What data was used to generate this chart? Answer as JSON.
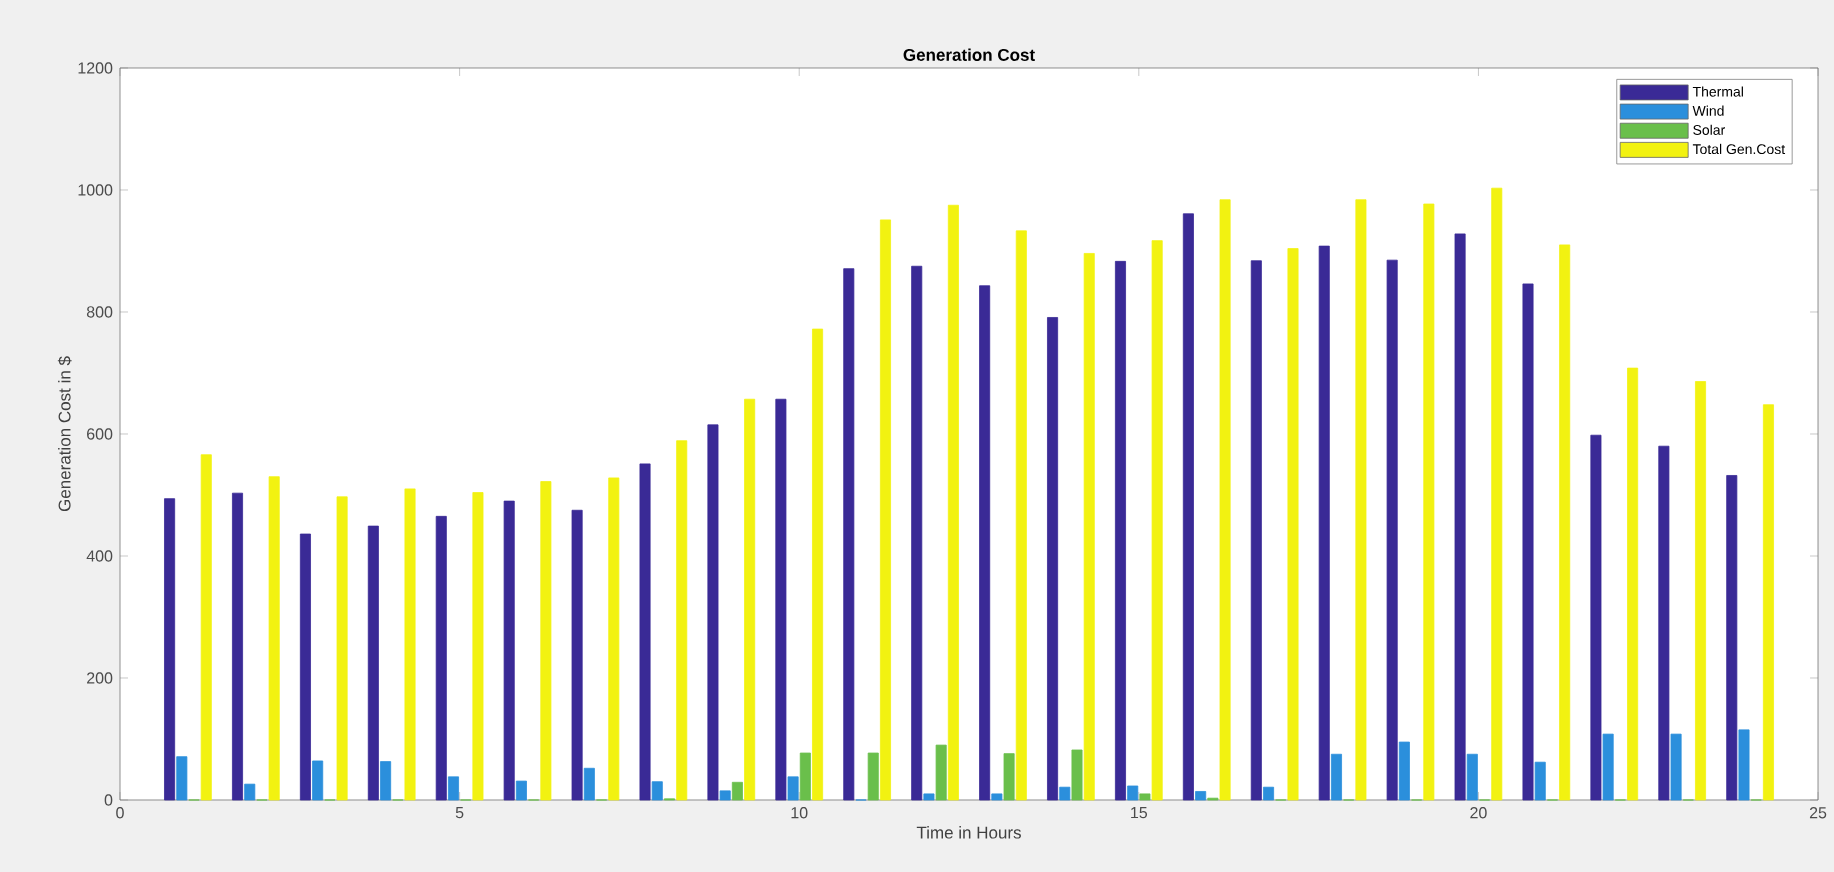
{
  "chart_data": {
    "type": "bar",
    "title": "Generation Cost",
    "xlabel": "Time in Hours",
    "ylabel": "Generation Cost in $",
    "x": [
      1,
      2,
      3,
      4,
      5,
      6,
      7,
      8,
      9,
      10,
      11,
      12,
      13,
      14,
      15,
      16,
      17,
      18,
      19,
      20,
      21,
      22,
      23,
      24
    ],
    "xlim": [
      0,
      25
    ],
    "xticks": [
      0,
      5,
      10,
      15,
      20,
      25
    ],
    "ylim": [
      0,
      1200
    ],
    "yticks": [
      0,
      200,
      400,
      600,
      800,
      1000,
      1200
    ],
    "legend": "top right",
    "series": [
      {
        "name": "Thermal",
        "color": "#3a2a96",
        "values": [
          494,
          503,
          436,
          449,
          465,
          490,
          475,
          551,
          615,
          657,
          871,
          875,
          843,
          791,
          883,
          961,
          884,
          908,
          885,
          928,
          846,
          598,
          580,
          532
        ]
      },
      {
        "name": "Wind",
        "color": "#2b8fdc",
        "values": [
          71,
          26,
          64,
          63,
          38,
          31,
          52,
          30,
          15,
          38,
          0,
          10,
          10,
          21,
          23,
          14,
          21,
          75,
          95,
          75,
          62,
          108,
          108,
          115
        ]
      },
      {
        "name": "Solar",
        "color": "#6abf4b",
        "values": [
          0,
          0,
          0,
          0,
          0,
          0,
          0,
          2,
          29,
          77,
          77,
          90,
          76,
          82,
          10,
          3,
          0,
          0,
          0,
          0,
          0,
          0,
          0,
          0
        ]
      },
      {
        "name": "Total Gen.Cost",
        "color": "#f2f211",
        "values": [
          566,
          530,
          497,
          510,
          504,
          522,
          528,
          589,
          657,
          772,
          951,
          975,
          933,
          896,
          917,
          984,
          904,
          984,
          977,
          1003,
          910,
          708,
          686,
          648
        ]
      }
    ]
  }
}
